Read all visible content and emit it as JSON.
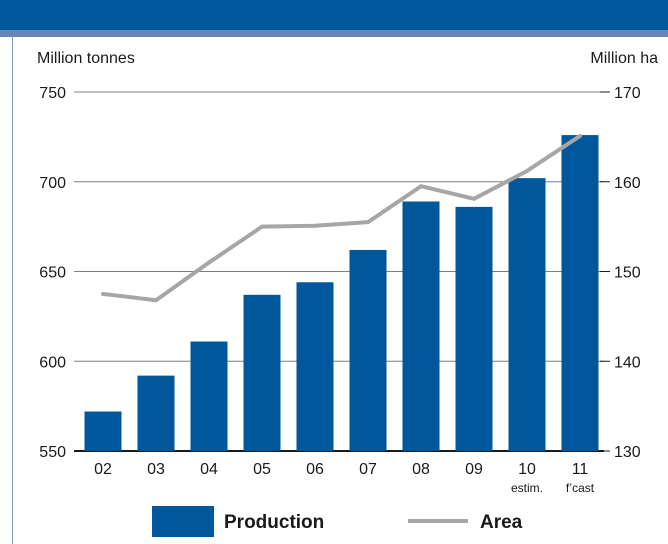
{
  "header": {
    "title": ""
  },
  "chart_data": {
    "type": "bar",
    "title": "",
    "y_left_label": "Million tonnes",
    "y_right_label": "Million ha",
    "y_left_lim": [
      550,
      750
    ],
    "y_right_lim": [
      130,
      170
    ],
    "y_left_ticks": [
      "750",
      "700",
      "650",
      "600",
      "550"
    ],
    "y_right_ticks": [
      "170",
      "160",
      "150",
      "140",
      "130"
    ],
    "categories": [
      "02",
      "03",
      "04",
      "05",
      "06",
      "07",
      "08",
      "09",
      "10",
      "11"
    ],
    "category_notes": {
      "10": "estim.",
      "11": "f’cast"
    },
    "series": [
      {
        "name": "Production",
        "type": "bar",
        "axis": "left",
        "color": "#00579b",
        "values": [
          572,
          592,
          611,
          637,
          644,
          662,
          689,
          686,
          702,
          726
        ]
      },
      {
        "name": "Area",
        "type": "line",
        "axis": "right",
        "color": "#a6a6a6",
        "values": [
          147.5,
          146.8,
          151.0,
          155.0,
          155.1,
          155.5,
          159.5,
          158.1,
          161.2,
          165.1
        ]
      }
    ],
    "grid": true,
    "legend_position": "bottom"
  }
}
